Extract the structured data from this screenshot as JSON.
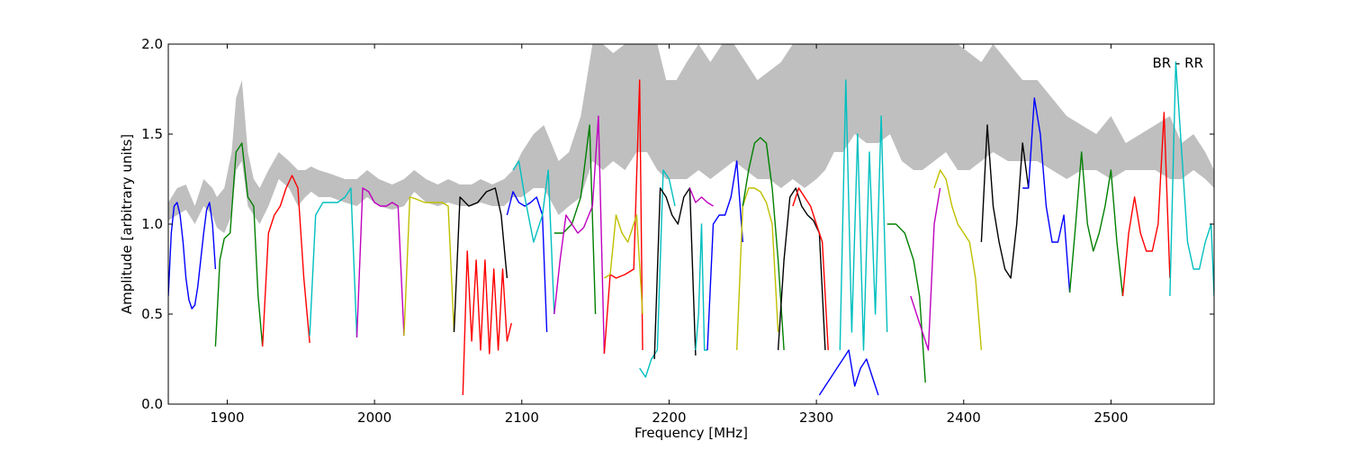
{
  "chart_data": {
    "type": "line",
    "xlabel": "Frequency [MHz]",
    "ylabel": "Amplitude [arbitrary units]",
    "annotation": "BR - RR",
    "xlim": [
      1860,
      2570
    ],
    "ylim": [
      0.0,
      2.0
    ],
    "xticks": [
      1900,
      2000,
      2100,
      2200,
      2300,
      2400,
      2500
    ],
    "yticks": [
      0.0,
      0.5,
      1.0,
      1.5,
      2.0
    ],
    "xtick_labels": [
      "1900",
      "2000",
      "2100",
      "2200",
      "2300",
      "2400",
      "2500"
    ],
    "ytick_labels": [
      "0.0",
      "0.5",
      "1.0",
      "1.5",
      "2.0"
    ],
    "grid": false,
    "reference_band": {
      "color": "#bfbfbf",
      "x": [
        1860,
        1866,
        1872,
        1878,
        1884,
        1890,
        1893,
        1898,
        1903,
        1906,
        1910,
        1914,
        1918,
        1922,
        1928,
        1935,
        1942,
        1948,
        1953,
        1957,
        1962,
        1970,
        1980,
        1988,
        1995,
        2003,
        2012,
        2020,
        2027,
        2035,
        2043,
        2050,
        2058,
        2066,
        2072,
        2080,
        2088,
        2094,
        2100,
        2108,
        2115,
        2125,
        2132,
        2140,
        2148,
        2155,
        2162,
        2170,
        2178,
        2185,
        2192,
        2198,
        2205,
        2212,
        2220,
        2228,
        2236,
        2244,
        2252,
        2260,
        2268,
        2276,
        2284,
        2292,
        2300,
        2306,
        2312,
        2318,
        2326,
        2334,
        2342,
        2350,
        2358,
        2366,
        2372,
        2380,
        2388,
        2396,
        2404,
        2412,
        2420,
        2430,
        2440,
        2450,
        2460,
        2470,
        2480,
        2490,
        2500,
        2510,
        2520,
        2530,
        2540,
        2548,
        2556,
        2564,
        2570
      ],
      "low": [
        1.02,
        1.05,
        1.08,
        1.0,
        1.1,
        1.05,
        0.98,
        0.95,
        1.05,
        1.3,
        1.35,
        1.1,
        1.05,
        1.0,
        1.1,
        1.25,
        1.2,
        1.1,
        1.15,
        1.18,
        1.15,
        1.15,
        1.12,
        1.1,
        1.15,
        1.1,
        1.08,
        1.1,
        1.18,
        1.12,
        1.1,
        1.12,
        1.1,
        1.1,
        1.12,
        1.1,
        1.1,
        1.15,
        1.15,
        1.2,
        1.2,
        1.05,
        1.1,
        1.15,
        1.35,
        1.3,
        1.35,
        1.3,
        1.4,
        1.4,
        1.3,
        1.25,
        1.25,
        1.25,
        1.3,
        1.25,
        1.3,
        1.35,
        1.3,
        1.25,
        1.25,
        1.2,
        1.25,
        1.2,
        1.25,
        1.3,
        1.4,
        1.4,
        1.5,
        1.45,
        1.45,
        1.5,
        1.35,
        1.3,
        1.3,
        1.35,
        1.4,
        1.3,
        1.3,
        1.35,
        1.4,
        1.35,
        1.35,
        1.35,
        1.3,
        1.25,
        1.3,
        1.3,
        1.25,
        1.3,
        1.3,
        1.3,
        1.25,
        1.25,
        1.3,
        1.25,
        1.2
      ],
      "high": [
        1.12,
        1.2,
        1.22,
        1.1,
        1.25,
        1.2,
        1.15,
        1.2,
        1.4,
        1.7,
        1.8,
        1.4,
        1.25,
        1.2,
        1.3,
        1.4,
        1.35,
        1.3,
        1.3,
        1.32,
        1.3,
        1.28,
        1.25,
        1.25,
        1.3,
        1.25,
        1.22,
        1.25,
        1.3,
        1.25,
        1.22,
        1.25,
        1.22,
        1.22,
        1.25,
        1.22,
        1.25,
        1.3,
        1.4,
        1.5,
        1.55,
        1.35,
        1.4,
        1.6,
        2.0,
        2.0,
        1.95,
        2.0,
        2.0,
        2.0,
        2.0,
        1.8,
        1.8,
        1.9,
        2.0,
        1.9,
        2.0,
        2.0,
        1.9,
        1.8,
        1.85,
        1.9,
        2.0,
        2.0,
        2.0,
        2.0,
        2.0,
        2.0,
        2.0,
        2.0,
        2.0,
        2.0,
        2.0,
        2.0,
        2.0,
        2.0,
        2.0,
        2.0,
        1.95,
        1.9,
        2.0,
        1.9,
        1.8,
        1.8,
        1.7,
        1.6,
        1.55,
        1.5,
        1.6,
        1.45,
        1.5,
        1.55,
        1.6,
        1.45,
        1.5,
        1.4,
        1.3
      ]
    },
    "series": [
      {
        "color": "#0000ff",
        "x": [
          1860,
          1862,
          1864,
          1866,
          1868,
          1870,
          1872,
          1874,
          1876,
          1878,
          1880,
          1882,
          1884,
          1886,
          1888,
          1890,
          1892
        ],
        "y": [
          0.6,
          0.95,
          1.1,
          1.12,
          1.05,
          0.9,
          0.7,
          0.58,
          0.53,
          0.55,
          0.65,
          0.8,
          0.95,
          1.08,
          1.12,
          1.0,
          0.75
        ]
      },
      {
        "color": "#008000",
        "x": [
          1892,
          1895,
          1898,
          1902,
          1906,
          1910,
          1914,
          1918,
          1921,
          1924
        ],
        "y": [
          0.32,
          0.8,
          0.92,
          0.95,
          1.4,
          1.45,
          1.15,
          1.1,
          0.6,
          0.32
        ]
      },
      {
        "color": "#ff0000",
        "x": [
          1924,
          1928,
          1932,
          1936,
          1940,
          1944,
          1948,
          1952,
          1956
        ],
        "y": [
          0.32,
          0.95,
          1.05,
          1.1,
          1.2,
          1.27,
          1.2,
          0.7,
          0.34
        ]
      },
      {
        "color": "#00bfbf",
        "x": [
          1956,
          1960,
          1965,
          1970,
          1975,
          1980,
          1984,
          1988
        ],
        "y": [
          0.38,
          1.05,
          1.12,
          1.12,
          1.12,
          1.15,
          1.2,
          0.37
        ]
      },
      {
        "color": "#bf00bf",
        "x": [
          1988,
          1992,
          1996,
          2000,
          2004,
          2008,
          2012,
          2016,
          2020
        ],
        "y": [
          0.37,
          1.2,
          1.18,
          1.12,
          1.1,
          1.1,
          1.12,
          1.1,
          0.38
        ]
      },
      {
        "color": "#bfbf00",
        "x": [
          2020,
          2024,
          2028,
          2034,
          2040,
          2046,
          2050,
          2054
        ],
        "y": [
          0.38,
          1.15,
          1.14,
          1.12,
          1.12,
          1.12,
          1.1,
          0.4
        ]
      },
      {
        "color": "#000000",
        "x": [
          2054,
          2058,
          2064,
          2070,
          2076,
          2082,
          2086,
          2090
        ],
        "y": [
          0.4,
          1.15,
          1.1,
          1.12,
          1.18,
          1.2,
          1.05,
          0.7
        ]
      },
      {
        "color": "#ff0000",
        "x": [
          2060,
          2063,
          2066,
          2069,
          2072,
          2075,
          2078,
          2081,
          2084,
          2087,
          2090,
          2093
        ],
        "y": [
          0.05,
          0.85,
          0.35,
          0.8,
          0.3,
          0.8,
          0.28,
          0.75,
          0.3,
          0.75,
          0.35,
          0.45
        ]
      },
      {
        "color": "#0000ff",
        "x": [
          2090,
          2094,
          2098,
          2102,
          2106,
          2110,
          2114,
          2117
        ],
        "y": [
          1.05,
          1.18,
          1.12,
          1.1,
          1.12,
          1.15,
          1.05,
          0.4
        ]
      },
      {
        "color": "#00bfbf",
        "x": [
          2094,
          2098,
          2102,
          2108,
          2114,
          2118,
          2122
        ],
        "y": [
          1.3,
          1.35,
          1.15,
          0.9,
          1.05,
          1.3,
          0.5
        ]
      },
      {
        "color": "#008000",
        "x": [
          2122,
          2128,
          2134,
          2140,
          2146,
          2150
        ],
        "y": [
          0.95,
          0.95,
          1.0,
          1.15,
          1.55,
          0.5
        ]
      },
      {
        "color": "#bf00bf",
        "x": [
          2122,
          2126,
          2130,
          2134,
          2138,
          2142,
          2148,
          2152,
          2156
        ],
        "y": [
          0.5,
          0.8,
          1.05,
          1.0,
          0.95,
          0.98,
          1.1,
          1.6,
          0.28
        ]
      },
      {
        "color": "#ff0000",
        "x": [
          2156,
          2160,
          2164,
          2170,
          2176,
          2180,
          2182
        ],
        "y": [
          0.28,
          0.72,
          0.7,
          0.72,
          0.75,
          1.8,
          0.3
        ]
      },
      {
        "color": "#bfbf00",
        "x": [
          2156,
          2160,
          2164,
          2168,
          2172,
          2178,
          2182
        ],
        "y": [
          0.7,
          0.72,
          1.05,
          0.95,
          0.9,
          1.05,
          0.5
        ]
      },
      {
        "color": "#00bfbf",
        "x": [
          2180,
          2184,
          2188,
          2192,
          2196,
          2200,
          2204
        ],
        "y": [
          0.2,
          0.15,
          0.25,
          0.3,
          1.3,
          1.25,
          1.1
        ]
      },
      {
        "color": "#000000",
        "x": [
          2190,
          2194,
          2198,
          2202,
          2206,
          2210,
          2214,
          2218
        ],
        "y": [
          0.25,
          1.2,
          1.15,
          1.05,
          1.0,
          1.15,
          1.2,
          0.27
        ]
      },
      {
        "color": "#bf00bf",
        "x": [
          2214,
          2218,
          2222,
          2226,
          2230
        ],
        "y": [
          1.2,
          1.12,
          1.15,
          1.12,
          1.1
        ]
      },
      {
        "color": "#00bfbf",
        "x": [
          2218,
          2220,
          2222,
          2224,
          2226
        ],
        "y": [
          0.3,
          0.5,
          1.0,
          0.3,
          0.3
        ]
      },
      {
        "color": "#0000ff",
        "x": [
          2226,
          2230,
          2234,
          2238,
          2242,
          2246,
          2250
        ],
        "y": [
          0.3,
          1.0,
          1.05,
          1.05,
          1.15,
          1.35,
          0.9
        ]
      },
      {
        "color": "#bfbf00",
        "x": [
          2246,
          2250,
          2254,
          2258,
          2262,
          2266,
          2270,
          2274
        ],
        "y": [
          0.3,
          1.1,
          1.2,
          1.2,
          1.18,
          1.12,
          1.0,
          0.4
        ]
      },
      {
        "color": "#008000",
        "x": [
          2250,
          2254,
          2258,
          2262,
          2266,
          2270,
          2274,
          2278
        ],
        "y": [
          1.1,
          1.3,
          1.45,
          1.48,
          1.45,
          1.2,
          0.8,
          0.3
        ]
      },
      {
        "color": "#000000",
        "x": [
          2274,
          2278,
          2282,
          2286,
          2290,
          2294,
          2298,
          2302,
          2306
        ],
        "y": [
          0.3,
          0.8,
          1.15,
          1.2,
          1.1,
          1.05,
          1.02,
          0.95,
          0.3
        ]
      },
      {
        "color": "#ff0000",
        "x": [
          2284,
          2288,
          2292,
          2296,
          2300,
          2304,
          2308
        ],
        "y": [
          1.1,
          1.2,
          1.15,
          1.1,
          1.0,
          0.9,
          0.3
        ]
      },
      {
        "color": "#0000ff",
        "x": [
          2302,
          2306,
          2310,
          2314,
          2318,
          2322,
          2326,
          2330,
          2334,
          2338,
          2342
        ],
        "y": [
          0.05,
          0.1,
          0.15,
          0.2,
          0.25,
          0.3,
          0.1,
          0.2,
          0.25,
          0.15,
          0.05
        ]
      },
      {
        "color": "#00bfbf",
        "x": [
          2316,
          2320,
          2324,
          2328,
          2332,
          2336,
          2340,
          2344,
          2348
        ],
        "y": [
          0.3,
          1.8,
          0.4,
          1.5,
          0.3,
          1.4,
          0.5,
          1.6,
          0.4
        ]
      },
      {
        "color": "#008000",
        "x": [
          2348,
          2354,
          2360,
          2366,
          2370,
          2374
        ],
        "y": [
          1.0,
          1.0,
          0.95,
          0.8,
          0.6,
          0.12
        ]
      },
      {
        "color": "#bf00bf",
        "x": [
          2364,
          2368,
          2372,
          2376,
          2380,
          2384
        ],
        "y": [
          0.6,
          0.5,
          0.4,
          0.3,
          1.0,
          1.2
        ]
      },
      {
        "color": "#bfbf00",
        "x": [
          2380,
          2384,
          2388,
          2392,
          2396,
          2400,
          2404,
          2408,
          2412
        ],
        "y": [
          1.2,
          1.3,
          1.25,
          1.1,
          1.0,
          0.95,
          0.9,
          0.7,
          0.3
        ]
      },
      {
        "color": "#000000",
        "x": [
          2412,
          2416,
          2420,
          2424,
          2428,
          2432,
          2436,
          2440,
          2444
        ],
        "y": [
          0.9,
          1.55,
          1.1,
          0.9,
          0.75,
          0.7,
          1.0,
          1.45,
          1.2
        ]
      },
      {
        "color": "#0000ff",
        "x": [
          2440,
          2444,
          2448,
          2452,
          2456,
          2460,
          2464,
          2468,
          2472
        ],
        "y": [
          1.2,
          1.2,
          1.7,
          1.5,
          1.1,
          0.9,
          0.9,
          1.05,
          0.62
        ]
      },
      {
        "color": "#008000",
        "x": [
          2472,
          2476,
          2480,
          2484,
          2488,
          2492,
          2496,
          2500,
          2504,
          2508
        ],
        "y": [
          0.62,
          1.0,
          1.4,
          1.0,
          0.85,
          0.95,
          1.1,
          1.3,
          0.9,
          0.6
        ]
      },
      {
        "color": "#ff0000",
        "x": [
          2508,
          2512,
          2516,
          2520,
          2524,
          2528,
          2532,
          2536,
          2540
        ],
        "y": [
          0.6,
          0.95,
          1.15,
          0.95,
          0.85,
          0.85,
          1.0,
          1.62,
          0.7
        ]
      },
      {
        "color": "#00bfbf",
        "x": [
          2540,
          2544,
          2548,
          2552,
          2556,
          2560,
          2564,
          2568,
          2570
        ],
        "y": [
          0.6,
          1.9,
          1.4,
          0.9,
          0.75,
          0.75,
          0.9,
          1.0,
          0.6
        ]
      }
    ]
  }
}
